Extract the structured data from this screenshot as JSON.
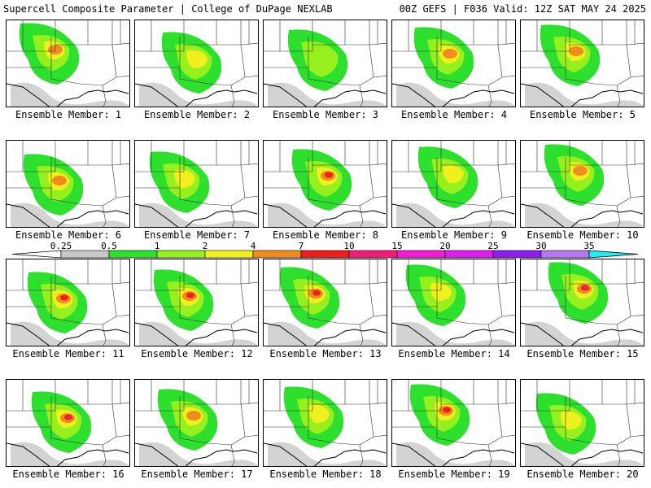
{
  "header": {
    "left": "Supercell Composite Parameter | College of DuPage NEXLAB",
    "right": "00Z GEFS | F036 Valid: 12Z SAT MAY 24 2025"
  },
  "colorbar": {
    "ticks": [
      "0.25",
      "0.5",
      "1",
      "2",
      "4",
      "7",
      "10",
      "15",
      "20",
      "25",
      "30",
      "35"
    ],
    "colors": [
      "#c8c8c8",
      "#2de02d",
      "#96f01e",
      "#f0f01e",
      "#f08c1e",
      "#f01e1e",
      "#f01e78",
      "#f01ed2",
      "#dc1ef0",
      "#8c1ef0",
      "#b478f0",
      "#1ef0f0"
    ]
  },
  "members": [
    {
      "label": "Ensemble Member: 1",
      "intensity": 3
    },
    {
      "label": "Ensemble Member: 2",
      "intensity": 2
    },
    {
      "label": "Ensemble Member: 3",
      "intensity": 1
    },
    {
      "label": "Ensemble Member: 4",
      "intensity": 3
    },
    {
      "label": "Ensemble Member: 5",
      "intensity": 3
    },
    {
      "label": "Ensemble Member: 6",
      "intensity": 3
    },
    {
      "label": "Ensemble Member: 7",
      "intensity": 2
    },
    {
      "label": "Ensemble Member: 8",
      "intensity": 4
    },
    {
      "label": "Ensemble Member: 9",
      "intensity": 2
    },
    {
      "label": "Ensemble Member: 10",
      "intensity": 3
    },
    {
      "label": "Ensemble Member: 11",
      "intensity": 4
    },
    {
      "label": "Ensemble Member: 12",
      "intensity": 4
    },
    {
      "label": "Ensemble Member: 13",
      "intensity": 4
    },
    {
      "label": "Ensemble Member: 14",
      "intensity": 2
    },
    {
      "label": "Ensemble Member: 15",
      "intensity": 5
    },
    {
      "label": "Ensemble Member: 16",
      "intensity": 5
    },
    {
      "label": "Ensemble Member: 17",
      "intensity": 3
    },
    {
      "label": "Ensemble Member: 18",
      "intensity": 2
    },
    {
      "label": "Ensemble Member: 19",
      "intensity": 4
    },
    {
      "label": "Ensemble Member: 20",
      "intensity": 2
    }
  ]
}
